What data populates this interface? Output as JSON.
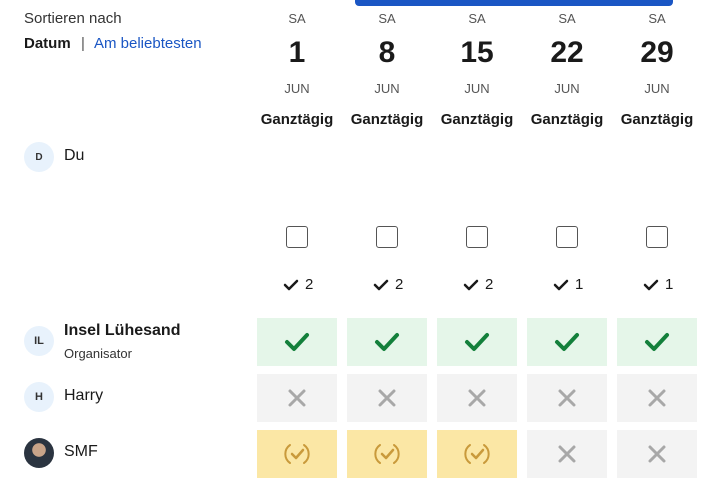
{
  "sort": {
    "label": "Sortieren nach",
    "options": [
      "Datum",
      "Am beliebtesten"
    ]
  },
  "columns": [
    {
      "weekday": "SA",
      "day": 1,
      "month": "JUN",
      "time": "Ganztägig",
      "count": 2
    },
    {
      "weekday": "SA",
      "day": 8,
      "month": "JUN",
      "time": "Ganztägig",
      "count": 2
    },
    {
      "weekday": "SA",
      "day": 15,
      "month": "JUN",
      "time": "Ganztägig",
      "count": 2
    },
    {
      "weekday": "SA",
      "day": 22,
      "month": "JUN",
      "time": "Ganztägig",
      "count": 1
    },
    {
      "weekday": "SA",
      "day": 29,
      "month": "JUN",
      "time": "Ganztägig",
      "count": 1
    }
  ],
  "me": {
    "initials": "D",
    "name": "Du"
  },
  "participants": [
    {
      "initials": "IL",
      "name": "Insel Lühesand",
      "role": "Organisator",
      "votes": [
        "yes",
        "yes",
        "yes",
        "yes",
        "yes"
      ]
    },
    {
      "initials": "H",
      "name": "Harry",
      "votes": [
        "no",
        "no",
        "no",
        "no",
        "no"
      ]
    },
    {
      "name": "SMF",
      "photo": true,
      "votes": [
        "maybe",
        "maybe",
        "maybe",
        "no",
        "no"
      ]
    }
  ]
}
